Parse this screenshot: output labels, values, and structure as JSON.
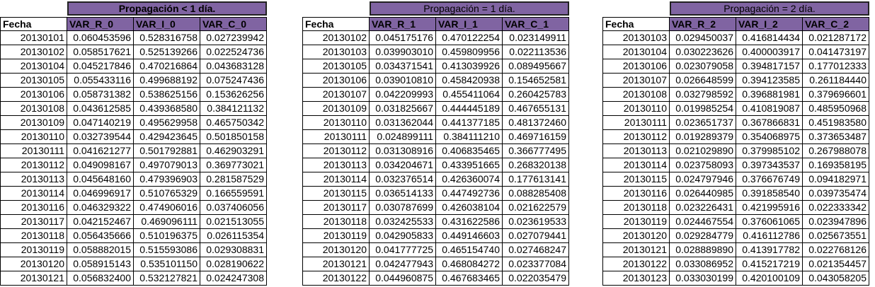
{
  "tables": [
    {
      "title": "Propagación < 1 día.",
      "headers": [
        "Fecha",
        "VAR_R_0",
        "VAR_I_0",
        "VAR_C_0"
      ],
      "rows": [
        [
          "20130101",
          "0.060453596",
          "0.528316758",
          "0.027239942"
        ],
        [
          "20130102",
          "0.058517621",
          "0.525139266",
          "0.022524736"
        ],
        [
          "20130104",
          "0.045217846",
          "0.470216864",
          "0.043683128"
        ],
        [
          "20130105",
          "0.055433116",
          "0.499688192",
          "0.075247436"
        ],
        [
          "20130106",
          "0.058731382",
          "0.538625156",
          "0.153626256"
        ],
        [
          "20130108",
          "0.043612585",
          "0.439368580",
          "0.384121132"
        ],
        [
          "20130109",
          "0.047140219",
          "0.495629958",
          "0.465750342"
        ],
        [
          "20130110",
          "0.032739544",
          "0.429423645",
          "0.501850158"
        ],
        [
          "20130111",
          "0.041621277",
          "0.501792881",
          "0.462903291"
        ],
        [
          "20130112",
          "0.049098167",
          "0.497079013",
          "0.369773021"
        ],
        [
          "20130113",
          "0.045648160",
          "0.479396903",
          "0.281587529"
        ],
        [
          "20130114",
          "0.046996917",
          "0.510765329",
          "0.166559591"
        ],
        [
          "20130116",
          "0.046329322",
          "0.474906016",
          "0.037406056"
        ],
        [
          "20130117",
          "0.042152467",
          "0.469096111",
          "0.021513055"
        ],
        [
          "20130118",
          "0.056435666",
          "0.510196375",
          "0.026115354"
        ],
        [
          "20130119",
          "0.058882015",
          "0.515593086",
          "0.029308831"
        ],
        [
          "20130120",
          "0.058915143",
          "0.535101150",
          "0.028190622"
        ],
        [
          "20130121",
          "0.056832400",
          "0.532127821",
          "0.024247308"
        ]
      ]
    },
    {
      "title": "Propagación = 1 día.",
      "headers": [
        "Fecha",
        "VAR_R_1",
        "VAR_I_1",
        "VAR_C_1"
      ],
      "rows": [
        [
          "20130102",
          "0.045175176",
          "0.470122254",
          "0.023149911"
        ],
        [
          "20130103",
          "0.039903010",
          "0.459809956",
          "0.022113536"
        ],
        [
          "20130105",
          "0.034371541",
          "0.413039926",
          "0.089495667"
        ],
        [
          "20130106",
          "0.039010810",
          "0.458420938",
          "0.154652581"
        ],
        [
          "20130107",
          "0.042209993",
          "0.455411064",
          "0.260425783"
        ],
        [
          "20130109",
          "0.031825667",
          "0.444445189",
          "0.467655131"
        ],
        [
          "20130110",
          "0.031362044",
          "0.441377185",
          "0.481372460"
        ],
        [
          "20130111",
          "0.024899111",
          "0.384111210",
          "0.469716159"
        ],
        [
          "20130112",
          "0.031308916",
          "0.406835465",
          "0.366777495"
        ],
        [
          "20130113",
          "0.034204671",
          "0.433951665",
          "0.268320138"
        ],
        [
          "20130114",
          "0.032376514",
          "0.426360074",
          "0.177613141"
        ],
        [
          "20130115",
          "0.036514133",
          "0.447492736",
          "0.088285408"
        ],
        [
          "20130117",
          "0.030787699",
          "0.426038104",
          "0.021622579"
        ],
        [
          "20130118",
          "0.032425533",
          "0.431622586",
          "0.023619533"
        ],
        [
          "20130119",
          "0.042905833",
          "0.449146603",
          "0.027079441"
        ],
        [
          "20130120",
          "0.041777725",
          "0.465154740",
          "0.027468247"
        ],
        [
          "20130121",
          "0.042477943",
          "0.468084272",
          "0.023377084"
        ],
        [
          "20130122",
          "0.044960875",
          "0.467683465",
          "0.022035479"
        ]
      ]
    },
    {
      "title": "Propagación = 2 día.",
      "headers": [
        "Fecha",
        "VAR_R_2",
        "VAR_I_2",
        "VAR_C_2"
      ],
      "rows": [
        [
          "20130103",
          "0.029450037",
          "0.416814434",
          "0.021287172"
        ],
        [
          "20130104",
          "0.030223626",
          "0.400003917",
          "0.041473197"
        ],
        [
          "20130106",
          "0.023079058",
          "0.394817157",
          "0.177012333"
        ],
        [
          "20130107",
          "0.026648599",
          "0.394123585",
          "0.261184440"
        ],
        [
          "20130108",
          "0.032798592",
          "0.396881981",
          "0.379696601"
        ],
        [
          "20130110",
          "0.019985254",
          "0.410819087",
          "0.485950968"
        ],
        [
          "20130111",
          "0.023651737",
          "0.367866831",
          "0.451983580"
        ],
        [
          "20130112",
          "0.019289379",
          "0.354068975",
          "0.373653487"
        ],
        [
          "20130113",
          "0.021029890",
          "0.379985102",
          "0.267988078"
        ],
        [
          "20130114",
          "0.023758093",
          "0.397343537",
          "0.169358195"
        ],
        [
          "20130115",
          "0.024797946",
          "0.376676749",
          "0.094182971"
        ],
        [
          "20130116",
          "0.026440985",
          "0.391858540",
          "0.039735474"
        ],
        [
          "20130118",
          "0.023226431",
          "0.421995916",
          "0.022333342"
        ],
        [
          "20130119",
          "0.024467554",
          "0.376061065",
          "0.023947896"
        ],
        [
          "20130120",
          "0.029284779",
          "0.416112786",
          "0.025673551"
        ],
        [
          "20130121",
          "0.028889890",
          "0.413917782",
          "0.022768126"
        ],
        [
          "20130122",
          "0.033086952",
          "0.415217219",
          "0.021354457"
        ],
        [
          "20130123",
          "0.033030199",
          "0.420100109",
          "0.043058205"
        ]
      ]
    }
  ]
}
